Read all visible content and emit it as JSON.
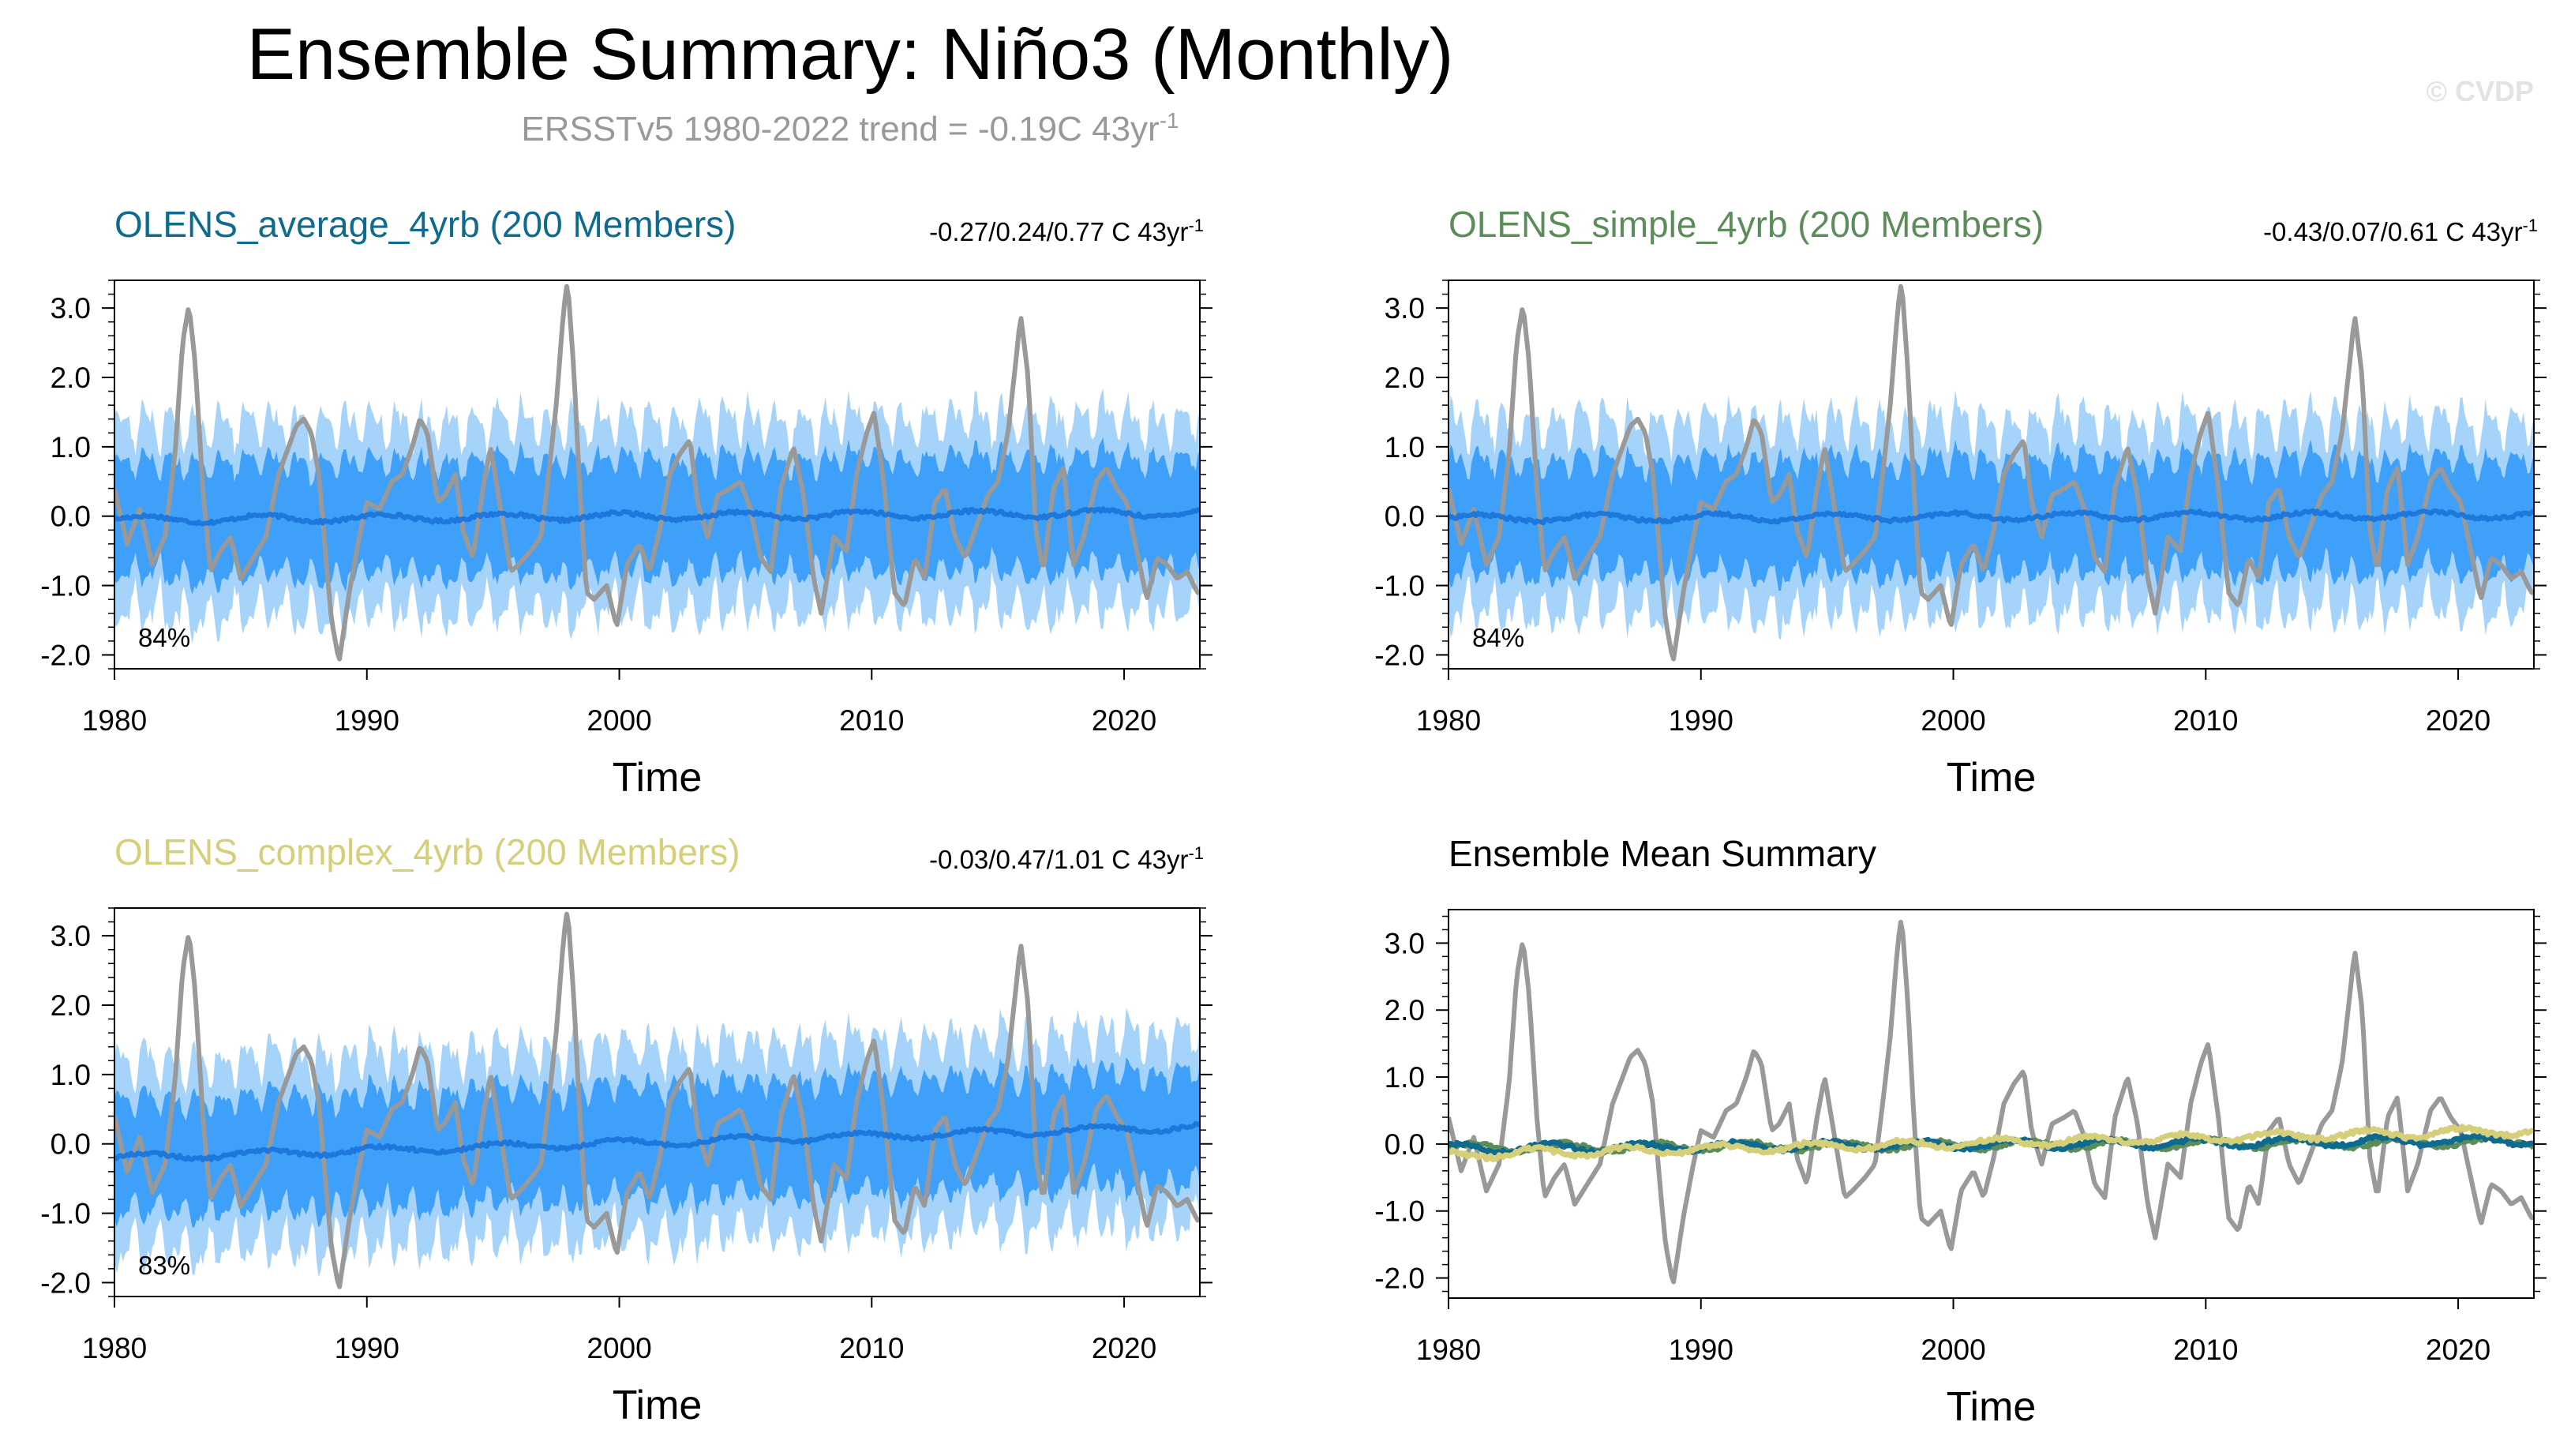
{
  "title": "Ensemble Summary: Niño3 (Monthly)",
  "subtitle": {
    "text": "ERSSTv5 1980-2022 trend = -0.19C 43yr",
    "superscript": "-1"
  },
  "watermark": "© CVDP",
  "colors": {
    "observed": "#999999",
    "band_outer": "#a6d3f9",
    "band_inner": "#3ea0f9",
    "ensemble_mean": "#1e78dc",
    "average": "#0e6b8e",
    "simple": "#5b8c5a",
    "complex": "#d6cf7a"
  },
  "chart_data": [
    {
      "id": "average",
      "type": "line",
      "title": "OLENS_average_4yrb (200 Members)",
      "trend_label": "-0.27/0.24/0.77 C 43yr",
      "trend_sup": "-1",
      "percent_label": "84%",
      "xlabel": "Time",
      "xlim": [
        1980,
        2023
      ],
      "ylim": [
        -2.2,
        3.4
      ],
      "xticks": [
        "1980",
        "1990",
        "2000",
        "2010",
        "2020"
      ],
      "yticks": [
        "-2.0",
        "-1.0",
        "0.0",
        "1.0",
        "2.0",
        "3.0"
      ],
      "mean_trend": [
        -0.05,
        0.05
      ],
      "band_inner": 0.8,
      "band_outer": 1.35
    },
    {
      "id": "simple",
      "type": "line",
      "title": "OLENS_simple_4yrb (200 Members)",
      "trend_label": "-0.43/0.07/0.61 C 43yr",
      "trend_sup": "-1",
      "percent_label": "84%",
      "xlabel": "Time",
      "xlim": [
        1980,
        2023
      ],
      "ylim": [
        -2.2,
        3.4
      ],
      "xticks": [
        "1980",
        "1990",
        "2000",
        "2010",
        "2020"
      ],
      "yticks": [
        "-2.0",
        "-1.0",
        "0.0",
        "1.0",
        "2.0",
        "3.0"
      ],
      "mean_trend": [
        -0.03,
        0.02
      ],
      "band_inner": 0.8,
      "band_outer": 1.35
    },
    {
      "id": "complex",
      "type": "line",
      "title": "OLENS_complex_4yrb (200 Members)",
      "trend_label": "-0.03/0.47/1.01 C 43yr",
      "trend_sup": "-1",
      "percent_label": "83%",
      "xlabel": "Time",
      "xlim": [
        1980,
        2023
      ],
      "ylim": [
        -2.2,
        3.4
      ],
      "xticks": [
        "1980",
        "1990",
        "2000",
        "2010",
        "2020"
      ],
      "yticks": [
        "-2.0",
        "-1.0",
        "0.0",
        "1.0",
        "2.0",
        "3.0"
      ],
      "mean_trend": [
        -0.2,
        0.25
      ],
      "band_inner": 0.8,
      "band_outer": 1.35
    },
    {
      "id": "mean_summary",
      "type": "line",
      "title": "Ensemble Mean Summary",
      "xlabel": "Time",
      "xlim": [
        1980,
        2023
      ],
      "ylim": [
        -2.3,
        3.5
      ],
      "xticks": [
        "1980",
        "1990",
        "2000",
        "2010",
        "2020"
      ],
      "yticks": [
        "-2.0",
        "-1.0",
        "0.0",
        "1.0",
        "2.0",
        "3.0"
      ],
      "series_trends": [
        {
          "key": "simple",
          "trend": [
            -0.06,
            0.03
          ]
        },
        {
          "key": "average",
          "trend": [
            -0.07,
            0.06
          ]
        },
        {
          "key": "complex",
          "trend": [
            -0.16,
            0.2
          ]
        }
      ]
    }
  ],
  "observed": {
    "x": [
      1980.0,
      1980.5,
      1981.0,
      1981.5,
      1982.0,
      1982.4,
      1982.7,
      1982.95,
      1983.2,
      1983.5,
      1983.8,
      1984.2,
      1984.6,
      1985.0,
      1985.5,
      1986.0,
      1986.5,
      1986.9,
      1987.2,
      1987.5,
      1987.8,
      1988.1,
      1988.4,
      1988.6,
      1988.9,
      1989.3,
      1989.7,
      1990.0,
      1990.5,
      1991.0,
      1991.4,
      1991.8,
      1992.1,
      1992.4,
      1992.8,
      1993.1,
      1993.5,
      1993.8,
      1994.2,
      1994.6,
      1994.9,
      1995.3,
      1995.7,
      1996.0,
      1996.5,
      1996.9,
      1997.2,
      1997.5,
      1997.8,
      1997.95,
      1998.2,
      1998.45,
      1998.7,
      1999.0,
      1999.5,
      1999.9,
      2000.3,
      2000.8,
      2001.2,
      2001.6,
      2002.0,
      2002.4,
      2002.8,
      2003.1,
      2003.5,
      2003.9,
      2004.4,
      2004.8,
      2005.2,
      2005.6,
      2006.0,
      2006.4,
      2006.9,
      2007.3,
      2007.7,
      2008.0,
      2008.5,
      2009.0,
      2009.4,
      2009.8,
      2010.1,
      2010.5,
      2010.9,
      2011.3,
      2011.7,
      2012.1,
      2012.5,
      2012.9,
      2013.3,
      2013.7,
      2014.1,
      2014.6,
      2015.0,
      2015.4,
      2015.7,
      2015.9,
      2016.2,
      2016.5,
      2016.8,
      2017.2,
      2017.6,
      2018.0,
      2018.4,
      2018.9,
      2019.3,
      2019.7,
      2020.1,
      2020.5,
      2020.9,
      2021.3,
      2021.7,
      2022.1,
      2022.5,
      2022.9
    ],
    "y": [
      0.4,
      -0.4,
      0.1,
      -0.7,
      -0.3,
      0.9,
      2.5,
      3.05,
      2.2,
      0.4,
      -0.8,
      -0.5,
      -0.3,
      -0.9,
      -0.6,
      -0.3,
      0.6,
      1.0,
      1.3,
      1.4,
      1.2,
      0.6,
      -0.7,
      -1.5,
      -2.1,
      -1.1,
      -0.3,
      0.2,
      0.1,
      0.5,
      0.6,
      1.0,
      1.4,
      1.2,
      0.2,
      0.3,
      0.6,
      -0.2,
      -0.6,
      0.4,
      1.0,
      0.1,
      -0.8,
      -0.7,
      -0.5,
      -0.3,
      0.6,
      1.6,
      3.0,
      3.4,
      2.1,
      0.3,
      -1.1,
      -1.2,
      -1.0,
      -1.6,
      -0.7,
      -0.4,
      -0.8,
      -0.2,
      0.6,
      0.9,
      1.1,
      0.2,
      -0.3,
      0.3,
      0.4,
      0.5,
      0.1,
      -0.6,
      -0.8,
      0.4,
      1.0,
      0.3,
      -0.9,
      -1.4,
      -0.3,
      -0.5,
      0.6,
      1.2,
      1.5,
      0.4,
      -1.1,
      -1.3,
      -0.6,
      -0.9,
      0.2,
      0.4,
      -0.3,
      -0.6,
      -0.2,
      0.3,
      0.5,
      1.2,
      2.2,
      2.9,
      2.0,
      -0.2,
      -0.8,
      0.4,
      0.7,
      -0.7,
      -0.3,
      0.5,
      0.7,
      0.4,
      0.2,
      -0.5,
      -1.2,
      -0.6,
      -0.7,
      -0.9,
      -0.8,
      -1.1
    ]
  }
}
